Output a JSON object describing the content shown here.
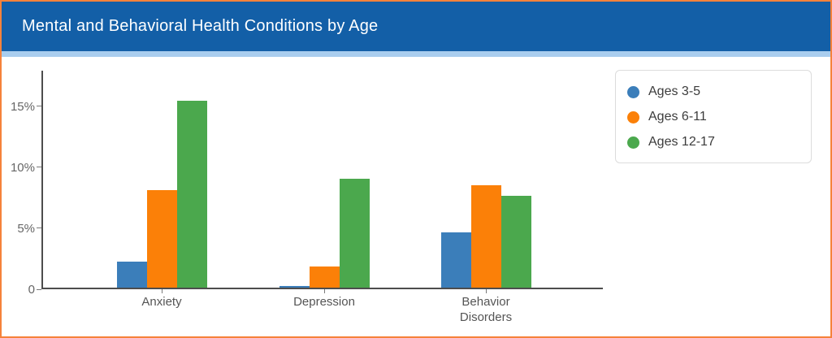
{
  "header": {
    "title": "Mental and Behavioral Health Conditions by Age"
  },
  "colors": {
    "frame_border": "#F5823B",
    "header_bg": "#135FA7",
    "header_strip": "#A9CDEE",
    "axis": "#4D4D4D",
    "tick_text": "#666666",
    "blue": "#3B7EBA",
    "orange": "#FB8008",
    "green": "#4BA84D"
  },
  "legend": {
    "items": [
      {
        "label": "Ages 3-5",
        "color": "#3B7EBA"
      },
      {
        "label": "Ages 6-11",
        "color": "#FB8008"
      },
      {
        "label": "Ages 12-17",
        "color": "#4BA84D"
      }
    ]
  },
  "chart_data": {
    "type": "bar",
    "title": "Mental and Behavioral Health Conditions by Age",
    "categories": [
      "Anxiety",
      "Depression",
      "Behavior Disorders"
    ],
    "series": [
      {
        "name": "Ages 3-5",
        "color": "#3B7EBA",
        "values": [
          2.1,
          0.1,
          4.5
        ]
      },
      {
        "name": "Ages 6-11",
        "color": "#FB8008",
        "values": [
          8.0,
          1.7,
          8.4
        ]
      },
      {
        "name": "Ages 12-17",
        "color": "#4BA84D",
        "values": [
          15.3,
          8.9,
          7.5
        ]
      }
    ],
    "xlabel": "",
    "ylabel": "",
    "y_ticks": [
      {
        "value": 0,
        "label": "0"
      },
      {
        "value": 5,
        "label": "5%"
      },
      {
        "value": 10,
        "label": "10%"
      },
      {
        "value": 15,
        "label": "15%"
      }
    ],
    "ylim": [
      0,
      17.9
    ],
    "grid": false,
    "legend_position": "top-right"
  }
}
